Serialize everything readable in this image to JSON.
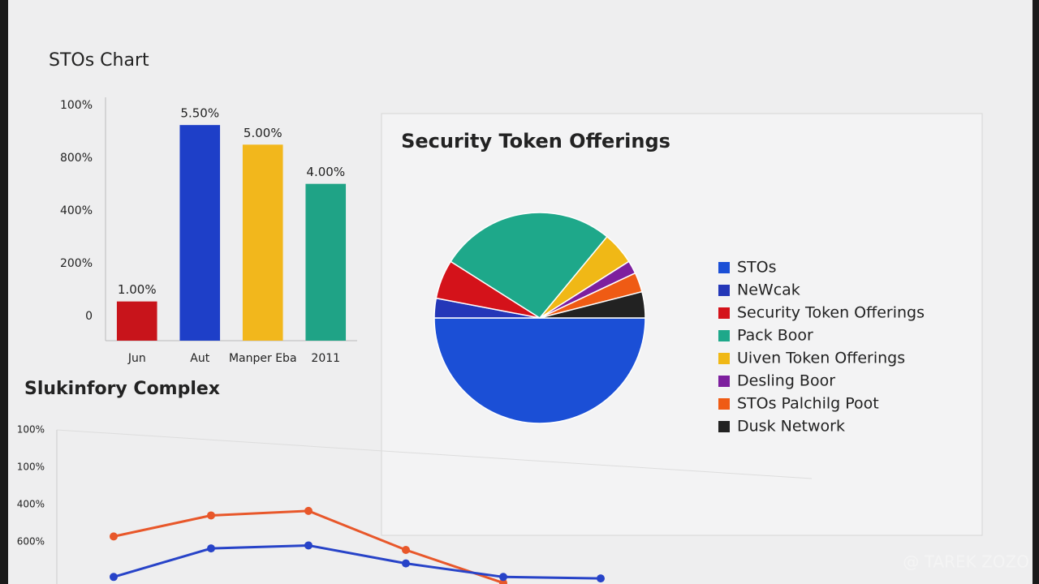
{
  "chart_data": [
    {
      "type": "bar",
      "title": "STOs Chart",
      "categories": [
        "Jun",
        "Aut",
        "Manper Eba",
        "2011"
      ],
      "values": [
        1,
        5.5,
        5,
        4
      ],
      "value_labels": [
        "1.00%",
        "5.50%",
        "5.00%",
        "4.00%"
      ],
      "colors": [
        "#c8141b",
        "#1e3fc8",
        "#f2b71c",
        "#1fa386"
      ],
      "ylim": [
        0,
        6
      ],
      "y_axis_labels": [
        "0",
        "200%",
        "400%",
        "800%",
        "100%"
      ]
    },
    {
      "type": "pie",
      "title": "Security Token Offerings",
      "categories": [
        "STOs",
        "NeWcak",
        "Security Token Offerings",
        "Pack Boor",
        "Uiven Token Offerings",
        "Desling Boor",
        "STOs Palchilg Poot",
        "Dusk Network"
      ],
      "values": [
        50,
        3,
        6,
        27,
        5,
        2,
        3,
        4
      ],
      "colors": [
        "#1b4fd6",
        "#2437b8",
        "#d4121a",
        "#1ea88a",
        "#f0b816",
        "#7d1f9e",
        "#ef5b14",
        "#222222"
      ]
    },
    {
      "type": "line",
      "title": "Slukinfory Complex",
      "categories": [
        null,
        null,
        null,
        null,
        null,
        null
      ],
      "ylim": [
        0,
        100
      ],
      "y_axis_labels": [
        "600%",
        "400%",
        "100%",
        "100%"
      ],
      "series": [
        {
          "color": "#e8572a",
          "values": [
            29,
            43,
            46,
            20,
            -2,
            null
          ]
        },
        {
          "color": "#2743c8",
          "values": [
            2,
            21,
            23,
            11,
            2,
            1
          ]
        }
      ]
    }
  ],
  "watermark": "@ TAREK ZOZO"
}
